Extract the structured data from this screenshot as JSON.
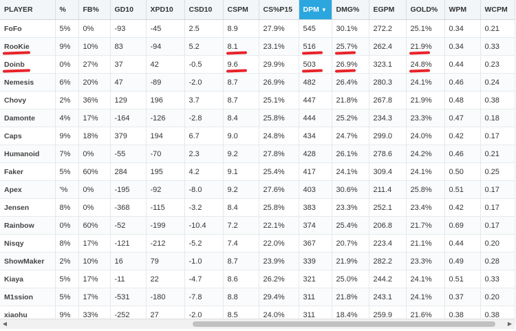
{
  "table": {
    "sorted_column": "DPM",
    "columns": [
      "PLAYER",
      "%",
      "FB%",
      "GD10",
      "XPD10",
      "CSD10",
      "CSPM",
      "CS%P15",
      "DPM",
      "DMG%",
      "EGPM",
      "GOLD%",
      "WPM",
      "WCPM"
    ],
    "rows": [
      [
        "FoFo",
        "5%",
        "0%",
        "-93",
        "-45",
        "2.5",
        "8.9",
        "27.9%",
        "545",
        "30.1%",
        "272.2",
        "25.1%",
        "0.34",
        "0.21"
      ],
      [
        "RooKie",
        "9%",
        "10%",
        "83",
        "-94",
        "5.2",
        "8.1",
        "23.1%",
        "516",
        "25.7%",
        "262.4",
        "21.9%",
        "0.34",
        "0.33"
      ],
      [
        "Doinb",
        "0%",
        "27%",
        "37",
        "42",
        "-0.5",
        "9.6",
        "29.9%",
        "503",
        "26.9%",
        "323.1",
        "24.8%",
        "0.44",
        "0.23"
      ],
      [
        "Nemesis",
        "6%",
        "20%",
        "47",
        "-89",
        "-2.0",
        "8.7",
        "26.9%",
        "482",
        "26.4%",
        "280.3",
        "24.1%",
        "0.46",
        "0.24"
      ],
      [
        "Chovy",
        "2%",
        "36%",
        "129",
        "196",
        "3.7",
        "8.7",
        "25.1%",
        "447",
        "21.8%",
        "267.8",
        "21.9%",
        "0.48",
        "0.38"
      ],
      [
        "Damonte",
        "4%",
        "17%",
        "-164",
        "-126",
        "-2.8",
        "8.4",
        "25.8%",
        "444",
        "25.2%",
        "234.3",
        "23.3%",
        "0.47",
        "0.18"
      ],
      [
        "Caps",
        "9%",
        "18%",
        "379",
        "194",
        "6.7",
        "9.0",
        "24.8%",
        "434",
        "24.7%",
        "299.0",
        "24.0%",
        "0.42",
        "0.17"
      ],
      [
        "Humanoid",
        "7%",
        "0%",
        "-55",
        "-70",
        "2.3",
        "9.2",
        "27.8%",
        "428",
        "26.1%",
        "278.6",
        "24.2%",
        "0.46",
        "0.21"
      ],
      [
        "Faker",
        "5%",
        "60%",
        "284",
        "195",
        "4.2",
        "9.1",
        "25.4%",
        "417",
        "24.1%",
        "309.4",
        "24.1%",
        "0.50",
        "0.25"
      ],
      [
        "Apex",
        "'%",
        "0%",
        "-195",
        "-92",
        "-8.0",
        "9.2",
        "27.6%",
        "403",
        "30.6%",
        "211.4",
        "25.8%",
        "0.51",
        "0.17"
      ],
      [
        "Jensen",
        "8%",
        "0%",
        "-368",
        "-115",
        "-3.2",
        "8.4",
        "25.8%",
        "383",
        "23.3%",
        "252.1",
        "23.4%",
        "0.42",
        "0.17"
      ],
      [
        "Rainbow",
        "0%",
        "60%",
        "-52",
        "-199",
        "-10.4",
        "7.2",
        "22.1%",
        "374",
        "25.4%",
        "206.8",
        "21.7%",
        "0.69",
        "0.17"
      ],
      [
        "Nisqy",
        "8%",
        "17%",
        "-121",
        "-212",
        "-5.2",
        "7.4",
        "22.0%",
        "367",
        "20.7%",
        "223.4",
        "21.1%",
        "0.44",
        "0.20"
      ],
      [
        "ShowMaker",
        "2%",
        "10%",
        "16",
        "79",
        "-1.0",
        "8.7",
        "23.9%",
        "339",
        "21.9%",
        "282.2",
        "23.3%",
        "0.49",
        "0.28"
      ],
      [
        "Kiaya",
        "5%",
        "17%",
        "-11",
        "22",
        "-4.7",
        "8.6",
        "26.2%",
        "321",
        "25.0%",
        "244.2",
        "24.1%",
        "0.51",
        "0.33"
      ],
      [
        "M1ssion",
        "5%",
        "17%",
        "-531",
        "-180",
        "-7.8",
        "8.8",
        "29.4%",
        "311",
        "21.8%",
        "243.1",
        "24.1%",
        "0.37",
        "0.20"
      ],
      [
        "xiaohu",
        "9%",
        "33%",
        "-252",
        "27",
        "-2.0",
        "8.5",
        "24.0%",
        "311",
        "18.4%",
        "259.9",
        "21.6%",
        "0.38",
        "0.38"
      ]
    ],
    "highlights": [
      {
        "row": 1,
        "cols": [
          0,
          6,
          8,
          9,
          11
        ]
      },
      {
        "row": 2,
        "cols": [
          0,
          6,
          8,
          9,
          11
        ]
      },
      {
        "row": 16,
        "cols": [
          0,
          6,
          8,
          9,
          11
        ]
      }
    ],
    "highlight_color": "#e8232a",
    "sorted_color": "#2ba6de"
  },
  "scrollbar": {
    "left_icon": "chevron-left-icon",
    "right_icon": "chevron-right-icon"
  }
}
